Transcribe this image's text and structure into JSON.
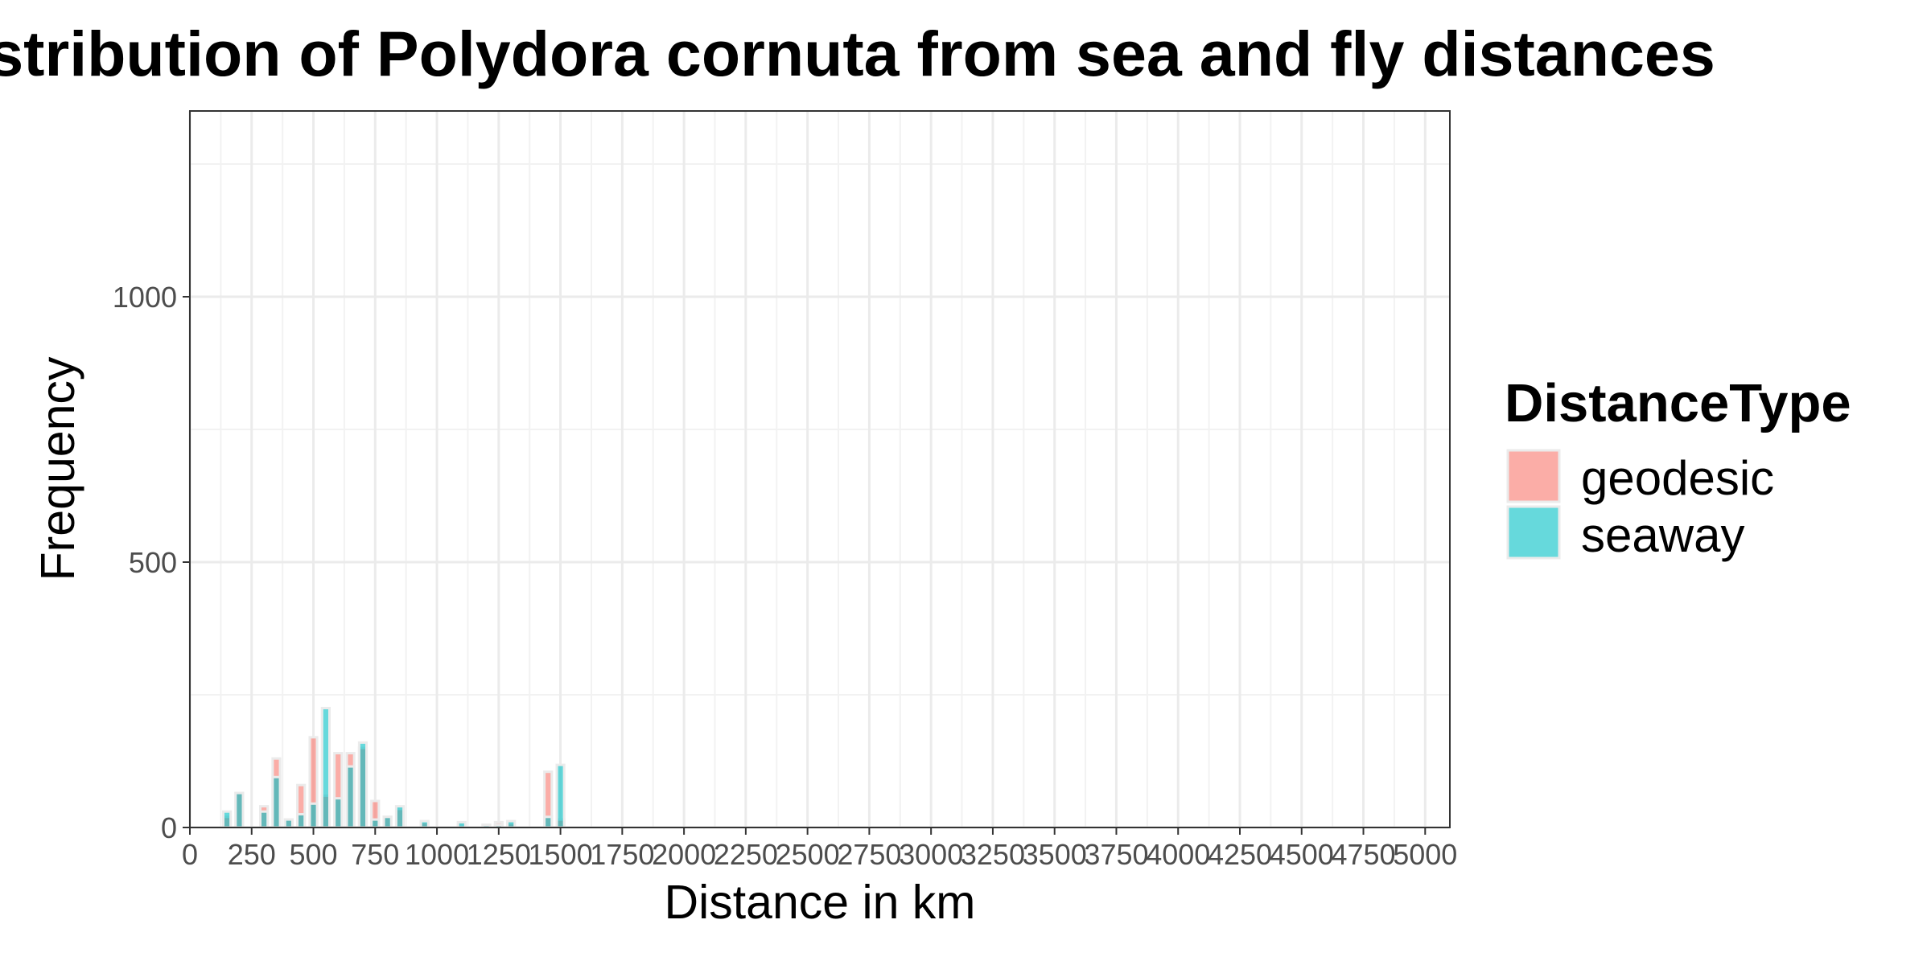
{
  "chart_data": {
    "type": "bar",
    "title": "Distribution of Polydora cornuta from sea and fly distances",
    "xlabel": "Distance in km",
    "ylabel": "Frequency",
    "xlim": [
      0,
      5100
    ],
    "ylim": [
      0,
      1350
    ],
    "x_ticks": [
      0,
      250,
      500,
      750,
      1000,
      1250,
      1500,
      1750,
      2000,
      2250,
      2500,
      2750,
      3000,
      3250,
      3500,
      3750,
      4000,
      4250,
      4500,
      4750,
      5000
    ],
    "y_ticks": [
      0,
      500,
      1000
    ],
    "grid": true,
    "legend": {
      "title": "DistanceType",
      "position": "right",
      "entries": [
        "geodesic",
        "seaway"
      ]
    },
    "bar_width": 30,
    "colors": {
      "geodesic": "#F8766D",
      "seaway": "#00BFC4"
    },
    "series": [
      {
        "name": "geodesic",
        "x": [
          150,
          200,
          300,
          350,
          400,
          450,
          500,
          550,
          600,
          650,
          700,
          750,
          800,
          850,
          950,
          1100,
          1200,
          1250,
          1300,
          1450,
          1500
        ],
        "values": [
          20,
          65,
          40,
          130,
          15,
          80,
          170,
          60,
          140,
          140,
          150,
          50,
          20,
          35,
          10,
          5,
          5,
          10,
          8,
          105,
          15
        ]
      },
      {
        "name": "seaway",
        "x": [
          150,
          200,
          300,
          350,
          400,
          450,
          500,
          550,
          600,
          650,
          700,
          750,
          800,
          850,
          950,
          1100,
          1200,
          1250,
          1300,
          1450,
          1500
        ],
        "values": [
          30,
          65,
          30,
          95,
          15,
          25,
          45,
          225,
          55,
          115,
          160,
          15,
          20,
          40,
          12,
          10,
          5,
          5,
          12,
          20,
          118
        ]
      }
    ]
  }
}
